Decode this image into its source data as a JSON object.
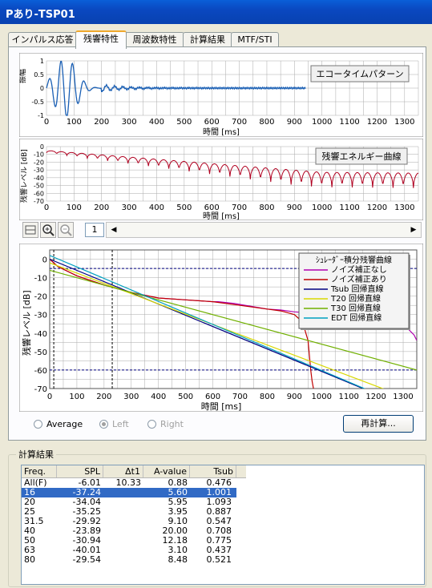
{
  "window": {
    "title": "Pあり-TSP01"
  },
  "tabs": [
    {
      "label": "インパルス応答",
      "active": false
    },
    {
      "label": "残響特性",
      "active": true
    },
    {
      "label": "周波数特性",
      "active": false
    },
    {
      "label": "計算結果",
      "active": false
    },
    {
      "label": "MTF/STI",
      "active": false
    }
  ],
  "echo_chart": {
    "label": "エコータイムパターン",
    "ylabel": "振幅",
    "xlabel": "時間 [ms]",
    "yticks": [
      "1",
      "0.5",
      "0",
      "-0.5",
      "-1"
    ],
    "xticks": [
      "0",
      "100",
      "200",
      "300",
      "400",
      "500",
      "600",
      "700",
      "800",
      "900",
      "1000",
      "1100",
      "1200",
      "1300"
    ]
  },
  "energy_chart": {
    "label": "残響エネルギー曲線",
    "ylabel": "残響レベル [dB]",
    "xlabel": "時間 [ms]",
    "yticks": [
      "0",
      "-10",
      "-20",
      "-30",
      "-40",
      "-50",
      "-60",
      "-70"
    ],
    "xticks": [
      "0",
      "100",
      "200",
      "300",
      "400",
      "500",
      "600",
      "700",
      "800",
      "900",
      "1000",
      "1100",
      "1200",
      "1300"
    ]
  },
  "toolbar": {
    "page": "1"
  },
  "chart_data": {
    "type": "line",
    "ylabel": "残響レベル [dB]",
    "xlabel": "時間 [ms]",
    "xlim": [
      0,
      1350
    ],
    "ylim": [
      -70,
      5
    ],
    "xticks": [
      "0",
      "100",
      "200",
      "300",
      "400",
      "500",
      "600",
      "700",
      "800",
      "900",
      "1000",
      "1100",
      "1200",
      "1300"
    ],
    "yticks": [
      "0",
      "-10",
      "-20",
      "-30",
      "-40",
      "-50",
      "-60",
      "-70"
    ],
    "legend_title": "ｼｭﾚｰﾀﾞｰ積分残響曲線",
    "legend_position": "top-right",
    "grid": true,
    "series": [
      {
        "name": "ノイズ補正なし",
        "color": "#b000b0",
        "x": [
          0,
          30,
          100,
          200,
          300,
          400,
          500,
          600,
          620,
          680,
          720,
          760,
          800,
          850,
          900,
          950,
          1000,
          1100,
          1200,
          1250,
          1300,
          1320,
          1340,
          1350
        ],
        "y": [
          0,
          -4,
          -9,
          -14,
          -18,
          -21,
          -22,
          -23,
          -23,
          -24,
          -25,
          -26,
          -27,
          -27.5,
          -28.5,
          -29,
          -29.5,
          -31,
          -33,
          -34,
          -36,
          -38,
          -41,
          -44
        ]
      },
      {
        "name": "ノイズ補正あり",
        "color": "#c00000",
        "x": [
          0,
          30,
          100,
          200,
          300,
          400,
          500,
          600,
          700,
          800,
          850,
          900,
          930,
          950,
          960,
          965,
          970
        ],
        "y": [
          0,
          -4,
          -9,
          -14,
          -18,
          -21,
          -22,
          -23,
          -25,
          -27,
          -28,
          -30,
          -34,
          -44,
          -60,
          -66,
          -70
        ]
      },
      {
        "name": "Tsub 回帰直線",
        "color": "#000080",
        "x": [
          0,
          1350
        ],
        "y": [
          0,
          -82
        ]
      },
      {
        "name": "T20 回帰直線",
        "color": "#d8d800",
        "x": [
          0,
          1350
        ],
        "y": [
          -2,
          -77
        ]
      },
      {
        "name": "T30 回帰直線",
        "color": "#70b000",
        "x": [
          0,
          1350
        ],
        "y": [
          -6,
          -60
        ]
      },
      {
        "name": "EDT 回帰直線",
        "color": "#00a0c0",
        "x": [
          0,
          1350
        ],
        "y": [
          2,
          -82
        ]
      }
    ],
    "annotations": {
      "vlines": [
        15,
        230
      ],
      "hlines": [
        -5,
        -60
      ]
    }
  },
  "options": {
    "average": "Average",
    "left": "Left",
    "right": "Right",
    "recalc": "再計算..."
  },
  "results": {
    "label": "計算結果",
    "headers": [
      "Freq.",
      "SPL",
      "Δt1",
      "A-value",
      "Tsub"
    ],
    "rows": [
      {
        "freq": "All(F)",
        "spl": "-6.01",
        "dt1": "10.33",
        "aval": "0.88",
        "tsub": "0.476",
        "sel": false
      },
      {
        "freq": "16",
        "spl": "-37.24",
        "dt1": "",
        "aval": "5.60",
        "tsub": "1.001",
        "sel": true
      },
      {
        "freq": "20",
        "spl": "-34.04",
        "dt1": "",
        "aval": "5.95",
        "tsub": "1.093",
        "sel": false
      },
      {
        "freq": "25",
        "spl": "-35.25",
        "dt1": "",
        "aval": "3.95",
        "tsub": "0.887",
        "sel": false
      },
      {
        "freq": "31.5",
        "spl": "-29.92",
        "dt1": "",
        "aval": "9.10",
        "tsub": "0.547",
        "sel": false
      },
      {
        "freq": "40",
        "spl": "-23.89",
        "dt1": "",
        "aval": "20.00",
        "tsub": "0.708",
        "sel": false
      },
      {
        "freq": "50",
        "spl": "-30.94",
        "dt1": "",
        "aval": "12.18",
        "tsub": "0.775",
        "sel": false
      },
      {
        "freq": "63",
        "spl": "-40.01",
        "dt1": "",
        "aval": "3.10",
        "tsub": "0.437",
        "sel": false
      },
      {
        "freq": "80",
        "spl": "-29.54",
        "dt1": "",
        "aval": "8.48",
        "tsub": "0.521",
        "sel": false
      }
    ]
  }
}
